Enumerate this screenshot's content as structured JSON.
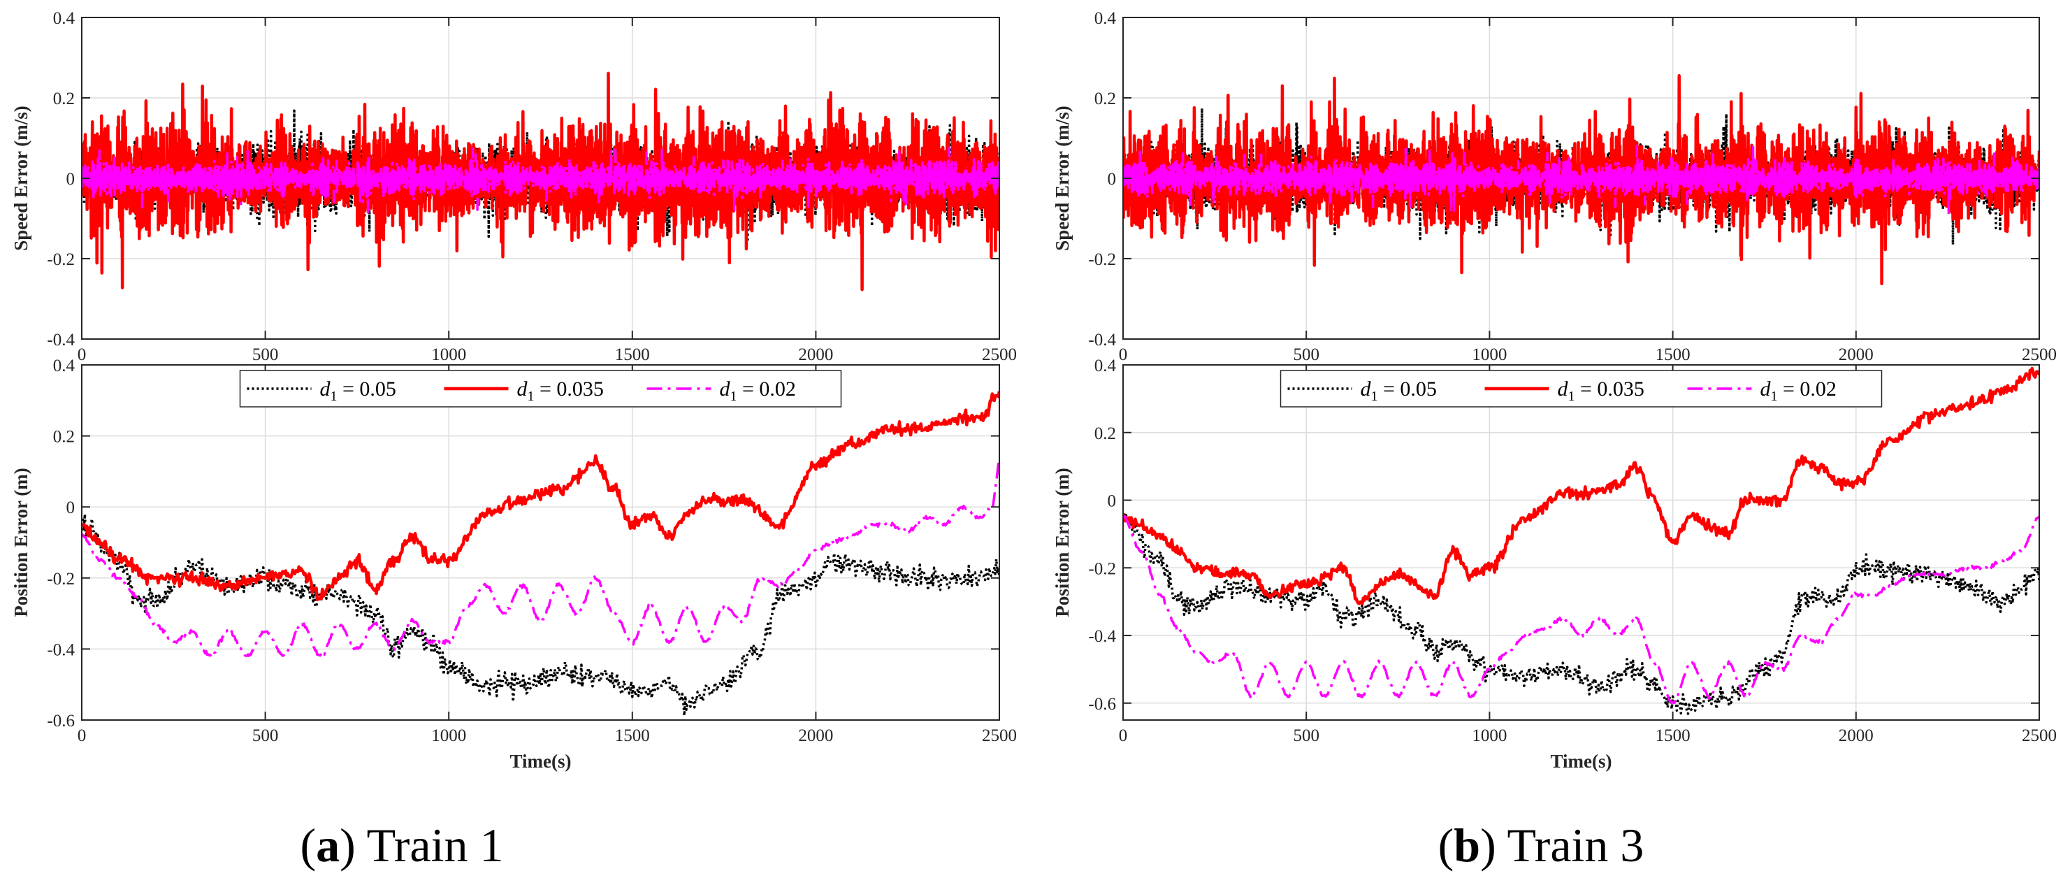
{
  "chart_data": [
    {
      "type": "line",
      "panel": "a-speed",
      "ylabel": "Speed Error (m/s)",
      "xlabel": "",
      "xlim": [
        0,
        2500
      ],
      "ylim": [
        -0.4,
        0.4
      ],
      "xticks": [
        "0",
        "500",
        "1000",
        "1500",
        "2000",
        "2500"
      ],
      "yticks": [
        "-0.4",
        "-0.2",
        "0",
        "0.2",
        "0.4"
      ],
      "grid": true,
      "series": [
        {
          "name": "d1 = 0.05",
          "style": "dotted",
          "color": "#000000",
          "amplitude": 0.2,
          "values_summary": "high-frequency oscillation about 0"
        },
        {
          "name": "d1 = 0.035",
          "style": "solid",
          "color": "#ff0000",
          "amplitude": 0.34,
          "values_summary": "high-frequency oscillation about 0"
        },
        {
          "name": "d1 = 0.02",
          "style": "dash-dot",
          "color": "#ff00ff",
          "amplitude": 0.1,
          "values_summary": "high-frequency oscillation about 0"
        }
      ]
    },
    {
      "type": "line",
      "panel": "a-position",
      "ylabel": "Position Error (m)",
      "xlabel": "Time(s)",
      "xlim": [
        0,
        2500
      ],
      "ylim": [
        -0.6,
        0.4
      ],
      "xticks": [
        "0",
        "500",
        "1000",
        "1500",
        "2000",
        "2500"
      ],
      "yticks": [
        "-0.6",
        "-0.4",
        "-0.2",
        "0",
        "0.2",
        "0.4"
      ],
      "grid": true,
      "legend": "top",
      "series": [
        {
          "name": "d1 = 0.05",
          "style": "dotted",
          "color": "#000000",
          "x": [
            0,
            100,
            150,
            200,
            300,
            400,
            500,
            550,
            650,
            700,
            800,
            850,
            900,
            950,
            1000,
            1100,
            1200,
            1300,
            1400,
            1500,
            1600,
            1650,
            1750,
            1850,
            1900,
            1950,
            2000,
            2050,
            2200,
            2300,
            2400,
            2500
          ],
          "y": [
            -0.05,
            -0.15,
            -0.25,
            -0.27,
            -0.17,
            -0.22,
            -0.2,
            -0.22,
            -0.25,
            -0.25,
            -0.3,
            -0.4,
            -0.35,
            -0.38,
            -0.45,
            -0.5,
            -0.5,
            -0.47,
            -0.48,
            -0.52,
            -0.5,
            -0.55,
            -0.5,
            -0.4,
            -0.25,
            -0.22,
            -0.2,
            -0.15,
            -0.18,
            -0.2,
            -0.2,
            -0.18
          ]
        },
        {
          "name": "d1 = 0.035",
          "style": "solid",
          "color": "#ff0000",
          "x": [
            0,
            50,
            100,
            200,
            300,
            400,
            500,
            600,
            650,
            700,
            750,
            800,
            850,
            900,
            950,
            1000,
            1100,
            1200,
            1300,
            1400,
            1450,
            1500,
            1550,
            1600,
            1650,
            1700,
            1800,
            1900,
            2000,
            2100,
            2200,
            2300,
            2400,
            2450,
            2500
          ],
          "y": [
            -0.05,
            -0.1,
            -0.15,
            -0.2,
            -0.2,
            -0.22,
            -0.2,
            -0.18,
            -0.25,
            -0.2,
            -0.15,
            -0.23,
            -0.15,
            -0.08,
            -0.15,
            -0.15,
            -0.02,
            0.02,
            0.05,
            0.12,
            0.05,
            -0.05,
            -0.02,
            -0.08,
            -0.02,
            0.02,
            0.02,
            -0.05,
            0.12,
            0.18,
            0.22,
            0.22,
            0.25,
            0.25,
            0.32
          ]
        },
        {
          "name": "d1 = 0.02",
          "style": "dash-dot",
          "color": "#ff00ff",
          "x": [
            0,
            50,
            100,
            150,
            200,
            250,
            300,
            350,
            400,
            450,
            500,
            550,
            600,
            650,
            700,
            750,
            800,
            850,
            900,
            950,
            1000,
            1050,
            1100,
            1150,
            1200,
            1250,
            1300,
            1350,
            1400,
            1450,
            1500,
            1550,
            1600,
            1650,
            1700,
            1750,
            1800,
            1850,
            1900,
            1950,
            2000,
            2050,
            2100,
            2150,
            2200,
            2250,
            2300,
            2350,
            2400,
            2450,
            2480,
            2500
          ],
          "y": [
            -0.08,
            -0.15,
            -0.2,
            -0.25,
            -0.33,
            -0.38,
            -0.35,
            -0.42,
            -0.35,
            -0.42,
            -0.35,
            -0.42,
            -0.33,
            -0.42,
            -0.33,
            -0.4,
            -0.33,
            -0.4,
            -0.32,
            -0.38,
            -0.38,
            -0.28,
            -0.22,
            -0.3,
            -0.22,
            -0.32,
            -0.22,
            -0.3,
            -0.2,
            -0.3,
            -0.38,
            -0.28,
            -0.38,
            -0.28,
            -0.38,
            -0.28,
            -0.32,
            -0.2,
            -0.22,
            -0.18,
            -0.12,
            -0.1,
            -0.08,
            -0.05,
            -0.05,
            -0.07,
            -0.03,
            -0.05,
            0.0,
            -0.03,
            0.0,
            0.12
          ]
        }
      ]
    },
    {
      "type": "line",
      "panel": "b-speed",
      "ylabel": "Speed Error (m/s)",
      "xlabel": "",
      "xlim": [
        0,
        2500
      ],
      "ylim": [
        -0.4,
        0.4
      ],
      "xticks": [
        "0",
        "500",
        "1000",
        "1500",
        "2000",
        "2500"
      ],
      "yticks": [
        "-0.4",
        "-0.2",
        "0",
        "0.2",
        "0.4"
      ],
      "grid": true,
      "series": [
        {
          "name": "d1 = 0.05",
          "style": "dotted",
          "color": "#000000",
          "amplitude": 0.2,
          "values_summary": "high-frequency oscillation about 0"
        },
        {
          "name": "d1 = 0.035",
          "style": "solid",
          "color": "#ff0000",
          "amplitude": 0.3,
          "values_summary": "high-frequency oscillation about 0"
        },
        {
          "name": "d1 = 0.02",
          "style": "dash-dot",
          "color": "#ff00ff",
          "amplitude": 0.1,
          "values_summary": "high-frequency oscillation about 0"
        }
      ]
    },
    {
      "type": "line",
      "panel": "b-position",
      "ylabel": "Position Error (m)",
      "xlabel": "Time(s)",
      "xlim": [
        0,
        2500
      ],
      "ylim": [
        -0.65,
        0.4
      ],
      "xticks": [
        "0",
        "500",
        "1000",
        "1500",
        "2000",
        "2500"
      ],
      "yticks": [
        "-0.6",
        "-0.4",
        "-0.2",
        "0",
        "0.2",
        "0.4"
      ],
      "grid": true,
      "legend": "top",
      "series": [
        {
          "name": "d1 = 0.05",
          "style": "dotted",
          "color": "#000000",
          "x": [
            0,
            100,
            150,
            200,
            300,
            400,
            500,
            550,
            600,
            700,
            800,
            850,
            900,
            1000,
            1100,
            1200,
            1300,
            1400,
            1450,
            1500,
            1550,
            1600,
            1650,
            1750,
            1800,
            1850,
            1900,
            1950,
            2000,
            2050,
            2200,
            2300,
            2400,
            2500
          ],
          "y": [
            -0.05,
            -0.18,
            -0.3,
            -0.32,
            -0.25,
            -0.28,
            -0.3,
            -0.25,
            -0.35,
            -0.3,
            -0.38,
            -0.45,
            -0.42,
            -0.5,
            -0.52,
            -0.5,
            -0.55,
            -0.5,
            -0.55,
            -0.6,
            -0.6,
            -0.6,
            -0.58,
            -0.5,
            -0.45,
            -0.3,
            -0.28,
            -0.3,
            -0.2,
            -0.2,
            -0.22,
            -0.25,
            -0.3,
            -0.22
          ]
        },
        {
          "name": "d1 = 0.035",
          "style": "solid",
          "color": "#ff0000",
          "x": [
            0,
            50,
            100,
            150,
            200,
            300,
            350,
            400,
            500,
            600,
            650,
            700,
            750,
            850,
            900,
            950,
            1000,
            1100,
            1200,
            1300,
            1350,
            1400,
            1450,
            1500,
            1550,
            1600,
            1650,
            1700,
            1800,
            1850,
            1900,
            1950,
            2000,
            2100,
            2200,
            2300,
            2400,
            2500
          ],
          "y": [
            -0.05,
            -0.08,
            -0.1,
            -0.15,
            -0.2,
            -0.22,
            -0.22,
            -0.28,
            -0.25,
            -0.2,
            -0.3,
            -0.25,
            -0.22,
            -0.28,
            -0.15,
            -0.22,
            -0.2,
            -0.05,
            0.02,
            0.02,
            0.05,
            0.1,
            0.0,
            -0.12,
            -0.05,
            -0.08,
            -0.1,
            0.0,
            0.0,
            0.12,
            0.1,
            0.05,
            0.05,
            0.18,
            0.25,
            0.28,
            0.32,
            0.38
          ]
        },
        {
          "name": "d1 = 0.02",
          "style": "dash-dot",
          "color": "#ff00ff",
          "x": [
            0,
            50,
            100,
            150,
            200,
            250,
            300,
            350,
            400,
            450,
            500,
            550,
            600,
            650,
            700,
            750,
            800,
            850,
            900,
            950,
            1000,
            1050,
            1100,
            1150,
            1200,
            1250,
            1300,
            1350,
            1400,
            1450,
            1500,
            1550,
            1600,
            1650,
            1700,
            1750,
            1800,
            1850,
            1900,
            1950,
            2000,
            2050,
            2100,
            2150,
            2200,
            2250,
            2300,
            2350,
            2400,
            2450,
            2500
          ],
          "y": [
            -0.05,
            -0.15,
            -0.28,
            -0.38,
            -0.45,
            -0.48,
            -0.45,
            -0.58,
            -0.48,
            -0.58,
            -0.48,
            -0.58,
            -0.48,
            -0.58,
            -0.48,
            -0.58,
            -0.48,
            -0.58,
            -0.48,
            -0.58,
            -0.5,
            -0.45,
            -0.4,
            -0.38,
            -0.35,
            -0.4,
            -0.35,
            -0.4,
            -0.35,
            -0.48,
            -0.6,
            -0.48,
            -0.58,
            -0.48,
            -0.58,
            -0.48,
            -0.5,
            -0.4,
            -0.42,
            -0.35,
            -0.28,
            -0.28,
            -0.25,
            -0.22,
            -0.22,
            -0.22,
            -0.2,
            -0.2,
            -0.18,
            -0.15,
            -0.05
          ]
        }
      ]
    }
  ],
  "legend": {
    "items": [
      {
        "var": "d",
        "sub": "1",
        "value": " = 0.05"
      },
      {
        "var": "d",
        "sub": "1",
        "value": " = 0.035"
      },
      {
        "var": "d",
        "sub": "1",
        "value": " = 0.02"
      }
    ]
  },
  "captions": [
    {
      "label": "a",
      "text": " Train 1"
    },
    {
      "label": "b",
      "text": " Train 3"
    }
  ],
  "colors": {
    "black": "#000000",
    "red": "#ff0000",
    "magenta": "#ff00ff",
    "grid": "#dcdcdc",
    "axis": "#262626"
  }
}
